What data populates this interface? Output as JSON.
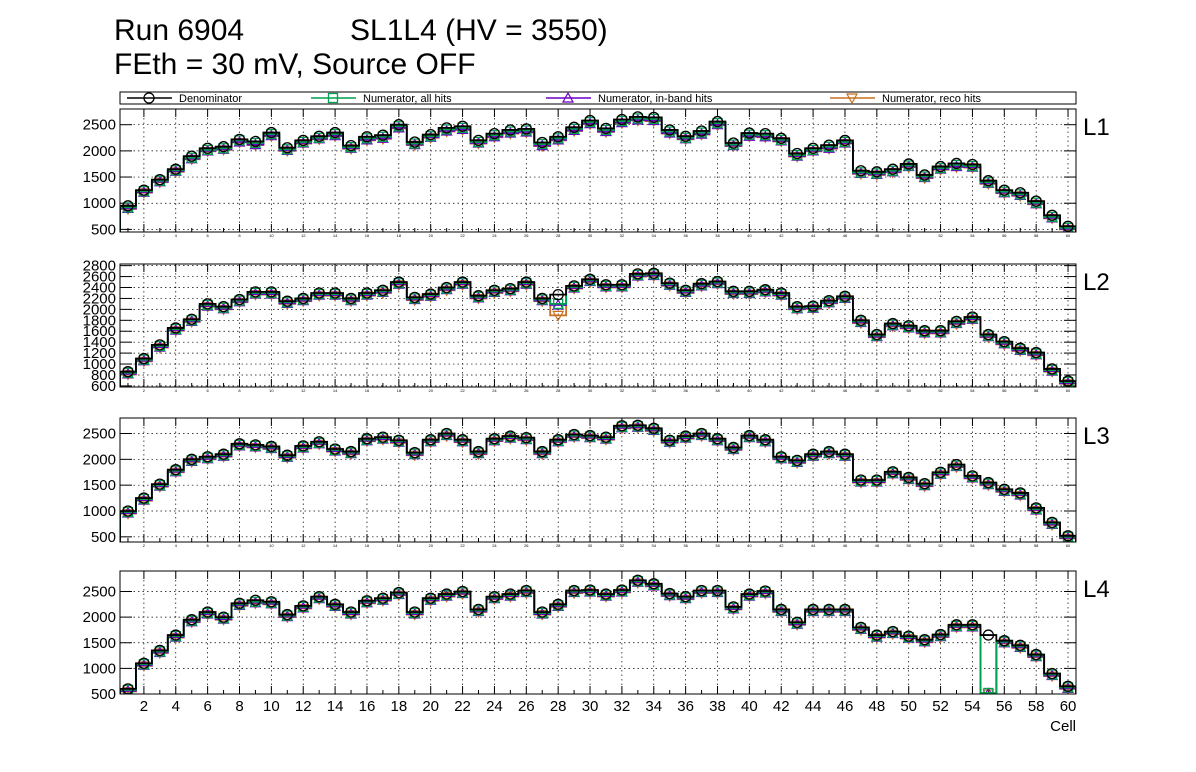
{
  "header": {
    "run": "Run 6904",
    "chamber": "SL1L4 (HV = 3550)",
    "conditions": "FEth = 30 mV, Source OFF"
  },
  "chart_data": {
    "type": "histogram",
    "xlabel": "Cell",
    "x_tick_labels": [
      "2",
      "4",
      "6",
      "8",
      "10",
      "12",
      "14",
      "16",
      "18",
      "20",
      "22",
      "24",
      "26",
      "28",
      "30",
      "32",
      "34",
      "36",
      "38",
      "40",
      "42",
      "44",
      "46",
      "48",
      "50",
      "52",
      "54",
      "56",
      "58",
      "60"
    ],
    "x_range": [
      0.5,
      60.5
    ],
    "legend": [
      {
        "name": "Denominator",
        "color": "#000000",
        "marker": "circle"
      },
      {
        "name": "Numerator, all hits",
        "color": "#00a050",
        "marker": "square"
      },
      {
        "name": "Numerator, in-band hits",
        "color": "#6a00c8",
        "marker": "triangle-up"
      },
      {
        "name": "Numerator, reco hits",
        "color": "#c87020",
        "marker": "triangle-down"
      }
    ],
    "panels": [
      {
        "label": "L1",
        "ylim": [
          450,
          2800
        ],
        "yticks": [
          500,
          1000,
          1500,
          2000,
          2500
        ],
        "denominator": [
          950,
          1250,
          1450,
          1650,
          1900,
          2050,
          2080,
          2220,
          2180,
          2350,
          2060,
          2200,
          2280,
          2350,
          2100,
          2270,
          2300,
          2500,
          2170,
          2310,
          2440,
          2470,
          2200,
          2330,
          2400,
          2420,
          2160,
          2270,
          2450,
          2580,
          2430,
          2600,
          2650,
          2640,
          2400,
          2280,
          2380,
          2560,
          2150,
          2340,
          2330,
          2240,
          1950,
          2050,
          2110,
          2200,
          1620,
          1600,
          1650,
          1750,
          1540,
          1700,
          1760,
          1740,
          1430,
          1250,
          1200,
          1040,
          770,
          560
        ],
        "all_hits": [
          920,
          1230,
          1430,
          1630,
          1870,
          2020,
          2050,
          2200,
          2150,
          2320,
          2030,
          2170,
          2250,
          2320,
          2070,
          2240,
          2270,
          2470,
          2140,
          2280,
          2410,
          2440,
          2170,
          2300,
          2370,
          2390,
          2130,
          2240,
          2420,
          2550,
          2400,
          2570,
          2620,
          2610,
          2370,
          2250,
          2350,
          2530,
          2120,
          2310,
          2300,
          2210,
          1920,
          2020,
          2080,
          2170,
          1590,
          1570,
          1620,
          1720,
          1510,
          1670,
          1730,
          1710,
          1400,
          1220,
          1170,
          1010,
          740,
          530
        ],
        "in_band": [
          900,
          1210,
          1410,
          1610,
          1850,
          2000,
          2030,
          2170,
          2120,
          2290,
          2010,
          2150,
          2230,
          2290,
          2050,
          2210,
          2240,
          2440,
          2120,
          2260,
          2380,
          2410,
          2150,
          2270,
          2340,
          2360,
          2100,
          2210,
          2390,
          2520,
          2370,
          2540,
          2590,
          2580,
          2340,
          2230,
          2320,
          2500,
          2100,
          2280,
          2270,
          2190,
          1900,
          2000,
          2050,
          2150,
          1570,
          1550,
          1600,
          1700,
          1490,
          1650,
          1700,
          1690,
          1380,
          1200,
          1150,
          990,
          720,
          510
        ],
        "reco": [
          890,
          1200,
          1400,
          1600,
          1840,
          1990,
          2020,
          2160,
          2110,
          2280,
          2000,
          2140,
          2220,
          2280,
          2040,
          2200,
          2230,
          2430,
          2110,
          2250,
          2370,
          2400,
          2140,
          2260,
          2330,
          2350,
          2090,
          2200,
          2380,
          2510,
          2360,
          2530,
          2580,
          2570,
          2330,
          2220,
          2310,
          2490,
          2090,
          2270,
          2260,
          2180,
          1890,
          1990,
          2040,
          2140,
          1560,
          1540,
          1590,
          1690,
          1480,
          1640,
          1690,
          1680,
          1370,
          1190,
          1140,
          980,
          710,
          500
        ]
      },
      {
        "label": "L2",
        "ylim": [
          580,
          2830
        ],
        "yticks": [
          600,
          800,
          1000,
          1200,
          1400,
          1600,
          1800,
          2000,
          2200,
          2400,
          2600,
          2800
        ],
        "denominator": [
          860,
          1100,
          1350,
          1660,
          1820,
          2100,
          2050,
          2180,
          2320,
          2320,
          2150,
          2200,
          2300,
          2300,
          2200,
          2300,
          2350,
          2500,
          2220,
          2280,
          2400,
          2500,
          2250,
          2350,
          2380,
          2500,
          2200,
          2270,
          2430,
          2550,
          2450,
          2450,
          2650,
          2660,
          2480,
          2350,
          2470,
          2510,
          2330,
          2330,
          2360,
          2300,
          2050,
          2060,
          2160,
          2240,
          1800,
          1540,
          1740,
          1700,
          1610,
          1610,
          1780,
          1860,
          1540,
          1410,
          1290,
          1210,
          910,
          690
        ],
        "all_hits": [
          840,
          1080,
          1330,
          1640,
          1800,
          2080,
          2030,
          2160,
          2300,
          2300,
          2130,
          2180,
          2280,
          2280,
          2180,
          2280,
          2330,
          2480,
          2200,
          2260,
          2380,
          2480,
          2230,
          2330,
          2360,
          2480,
          2180,
          2100,
          2410,
          2530,
          2430,
          2430,
          2630,
          2640,
          2460,
          2330,
          2450,
          2490,
          2310,
          2310,
          2340,
          2280,
          2030,
          2040,
          2140,
          2220,
          1780,
          1520,
          1720,
          1680,
          1590,
          1590,
          1760,
          1840,
          1520,
          1390,
          1270,
          1190,
          890,
          670
        ],
        "in_band": [
          820,
          1060,
          1310,
          1620,
          1780,
          2060,
          2010,
          2140,
          2280,
          2280,
          2110,
          2160,
          2260,
          2260,
          2160,
          2260,
          2310,
          2460,
          2180,
          2240,
          2360,
          2460,
          2210,
          2310,
          2340,
          2460,
          2160,
          2080,
          2390,
          2510,
          2410,
          2410,
          2610,
          2620,
          2440,
          2310,
          2430,
          2470,
          2290,
          2290,
          2320,
          2260,
          2010,
          2020,
          2120,
          2200,
          1760,
          1500,
          1700,
          1660,
          1570,
          1570,
          1740,
          1820,
          1500,
          1370,
          1250,
          1170,
          870,
          650
        ],
        "reco": [
          810,
          1050,
          1300,
          1610,
          1770,
          2050,
          2000,
          2130,
          2270,
          2270,
          2100,
          2150,
          2250,
          2250,
          2150,
          2250,
          2300,
          2450,
          2170,
          2230,
          2350,
          2450,
          2200,
          2300,
          2330,
          2450,
          2150,
          1890,
          2380,
          2500,
          2400,
          2400,
          2600,
          2610,
          2430,
          2300,
          2420,
          2460,
          2280,
          2280,
          2310,
          2250,
          2000,
          2010,
          2110,
          2190,
          1750,
          1490,
          1690,
          1650,
          1560,
          1560,
          1730,
          1810,
          1490,
          1360,
          1240,
          1160,
          860,
          640
        ]
      },
      {
        "label": "L3",
        "ylim": [
          400,
          2800
        ],
        "yticks": [
          500,
          1000,
          1500,
          2000,
          2500
        ],
        "denominator": [
          1000,
          1250,
          1520,
          1800,
          2000,
          2050,
          2100,
          2300,
          2280,
          2250,
          2080,
          2260,
          2340,
          2200,
          2150,
          2400,
          2430,
          2370,
          2130,
          2380,
          2500,
          2380,
          2150,
          2400,
          2450,
          2420,
          2150,
          2380,
          2480,
          2460,
          2430,
          2650,
          2660,
          2600,
          2370,
          2450,
          2500,
          2400,
          2230,
          2460,
          2380,
          2050,
          1980,
          2100,
          2150,
          2100,
          1600,
          1600,
          1760,
          1650,
          1530,
          1750,
          1900,
          1680,
          1550,
          1420,
          1350,
          1060,
          780,
          520
        ],
        "all_hits": [
          980,
          1230,
          1500,
          1780,
          1980,
          2030,
          2080,
          2280,
          2260,
          2230,
          2060,
          2240,
          2320,
          2180,
          2130,
          2380,
          2410,
          2350,
          2110,
          2360,
          2480,
          2360,
          2130,
          2380,
          2430,
          2400,
          2130,
          2360,
          2460,
          2440,
          2410,
          2630,
          2640,
          2580,
          2350,
          2430,
          2480,
          2380,
          2210,
          2440,
          2360,
          2030,
          1960,
          2080,
          2130,
          2080,
          1580,
          1580,
          1740,
          1630,
          1510,
          1730,
          1880,
          1660,
          1530,
          1400,
          1330,
          1040,
          760,
          500
        ],
        "in_band": [
          960,
          1210,
          1480,
          1760,
          1960,
          2010,
          2060,
          2260,
          2240,
          2210,
          2040,
          2220,
          2300,
          2160,
          2110,
          2360,
          2390,
          2330,
          2090,
          2340,
          2460,
          2340,
          2110,
          2360,
          2410,
          2380,
          2110,
          2340,
          2440,
          2420,
          2390,
          2610,
          2620,
          2560,
          2330,
          2410,
          2460,
          2360,
          2190,
          2420,
          2340,
          2010,
          1940,
          2060,
          2110,
          2060,
          1560,
          1560,
          1720,
          1610,
          1490,
          1710,
          1860,
          1640,
          1510,
          1380,
          1310,
          1020,
          740,
          480
        ],
        "reco": [
          950,
          1200,
          1470,
          1750,
          1950,
          2000,
          2050,
          2250,
          2230,
          2200,
          2030,
          2210,
          2290,
          2150,
          2100,
          2350,
          2380,
          2320,
          2080,
          2330,
          2450,
          2330,
          2100,
          2350,
          2400,
          2370,
          2100,
          2330,
          2430,
          2410,
          2380,
          2600,
          2610,
          2550,
          2320,
          2400,
          2450,
          2350,
          2180,
          2410,
          2330,
          2000,
          1930,
          2050,
          2100,
          2050,
          1550,
          1550,
          1710,
          1600,
          1480,
          1700,
          1850,
          1630,
          1500,
          1370,
          1300,
          1010,
          730,
          470
        ]
      },
      {
        "label": "L4",
        "ylim": [
          500,
          2900
        ],
        "yticks": [
          500,
          1000,
          1500,
          2000,
          2500
        ],
        "denominator": [
          600,
          1100,
          1350,
          1650,
          1950,
          2100,
          2000,
          2270,
          2330,
          2300,
          2050,
          2220,
          2400,
          2250,
          2100,
          2320,
          2370,
          2480,
          2100,
          2370,
          2450,
          2500,
          2150,
          2400,
          2450,
          2520,
          2100,
          2250,
          2520,
          2530,
          2450,
          2530,
          2720,
          2650,
          2460,
          2400,
          2520,
          2520,
          2200,
          2450,
          2510,
          2150,
          1900,
          2150,
          2150,
          2150,
          1800,
          1650,
          1720,
          1630,
          1560,
          1660,
          1850,
          1850,
          1650,
          1540,
          1450,
          1270,
          900,
          650
        ],
        "all_hits": [
          580,
          1080,
          1330,
          1630,
          1930,
          2080,
          1980,
          2250,
          2300,
          2280,
          2030,
          2200,
          2380,
          2230,
          2080,
          2300,
          2350,
          2460,
          2080,
          2350,
          2430,
          2480,
          2130,
          2380,
          2430,
          2500,
          2080,
          2230,
          2500,
          2510,
          2430,
          2510,
          2700,
          2630,
          2440,
          2380,
          2500,
          2500,
          2180,
          2430,
          2490,
          2130,
          1880,
          2130,
          2130,
          2130,
          1780,
          1630,
          1700,
          1610,
          1540,
          1640,
          1830,
          1830,
          520,
          1520,
          1430,
          1250,
          880,
          630
        ],
        "in_band": [
          560,
          1060,
          1310,
          1610,
          1910,
          2060,
          1960,
          2230,
          2280,
          2260,
          2010,
          2180,
          2360,
          2210,
          2060,
          2280,
          2330,
          2440,
          2060,
          2330,
          2410,
          2460,
          2110,
          2360,
          2410,
          2480,
          2060,
          2210,
          2480,
          2490,
          2410,
          2490,
          2680,
          2610,
          2420,
          2360,
          2480,
          2480,
          2160,
          2410,
          2470,
          2110,
          1860,
          2110,
          2110,
          2110,
          1760,
          1610,
          1680,
          1590,
          1520,
          1620,
          1810,
          1810,
          510,
          1500,
          1410,
          1230,
          860,
          610
        ],
        "reco": [
          550,
          1050,
          1300,
          1600,
          1900,
          2050,
          1950,
          2220,
          2270,
          2250,
          2000,
          2170,
          2350,
          2200,
          2050,
          2270,
          2320,
          2430,
          2050,
          2320,
          2400,
          2450,
          2100,
          2350,
          2400,
          2470,
          2050,
          2200,
          2470,
          2480,
          2400,
          2480,
          2670,
          2600,
          2410,
          2350,
          2470,
          2470,
          2150,
          2400,
          2460,
          2100,
          1850,
          2100,
          2100,
          2100,
          1750,
          1600,
          1670,
          1580,
          1510,
          1610,
          1800,
          1800,
          500,
          1490,
          1400,
          1220,
          850,
          600
        ]
      }
    ]
  }
}
